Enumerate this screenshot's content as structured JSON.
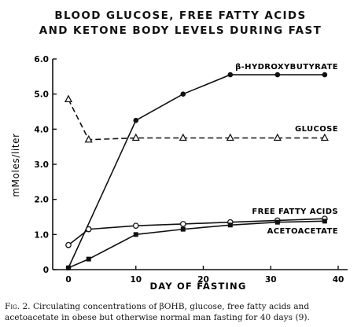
{
  "chart_data": {
    "type": "line",
    "title": "BLOOD GLUCOSE, FREE FATTY ACIDS",
    "subtitle": "AND KETONE BODY LEVELS DURING FAST",
    "xlabel": "DAY OF FASTING",
    "ylabel": "mMoles/liter",
    "xlim": [
      0,
      40
    ],
    "ylim": [
      0,
      6.0
    ],
    "xticks": [
      0,
      10,
      20,
      30,
      40
    ],
    "yticks": [
      0,
      1.0,
      2.0,
      3.0,
      4.0,
      5.0,
      6.0
    ],
    "ytick_labels": [
      "0",
      "1.0",
      "2.0",
      "3.0",
      "4.0",
      "5.0",
      "6.0"
    ],
    "grid": false,
    "series": [
      {
        "name": "β-HYDROXYBUTYRATE",
        "marker": "filled-circle",
        "line": "solid",
        "x": [
          0,
          10,
          17,
          24,
          31,
          38
        ],
        "y": [
          0.05,
          4.25,
          5.0,
          5.55,
          5.55,
          5.55
        ]
      },
      {
        "name": "GLUCOSE",
        "marker": "open-triangle",
        "line": "dashed",
        "x": [
          0,
          3,
          10,
          17,
          24,
          31,
          38
        ],
        "y": [
          4.85,
          3.7,
          3.75,
          3.75,
          3.75,
          3.75,
          3.75
        ]
      },
      {
        "name": "FREE FATTY ACIDS",
        "marker": "open-circle",
        "line": "solid",
        "x": [
          0,
          3,
          10,
          17,
          24,
          31,
          38
        ],
        "y": [
          0.7,
          1.15,
          1.25,
          1.3,
          1.35,
          1.4,
          1.45
        ]
      },
      {
        "name": "ACETOACETATE",
        "marker": "filled-square",
        "line": "solid",
        "x": [
          0,
          3,
          10,
          17,
          24,
          31,
          38
        ],
        "y": [
          0.05,
          0.3,
          1.0,
          1.15,
          1.27,
          1.35,
          1.38
        ]
      }
    ]
  },
  "caption": {
    "fig_label": "Fig. 2.",
    "text": "Circulating concentrations of βOHB, glucose, free fatty acids and acetoacetate in obese but otherwise normal man fasting for 40 days (9)."
  }
}
